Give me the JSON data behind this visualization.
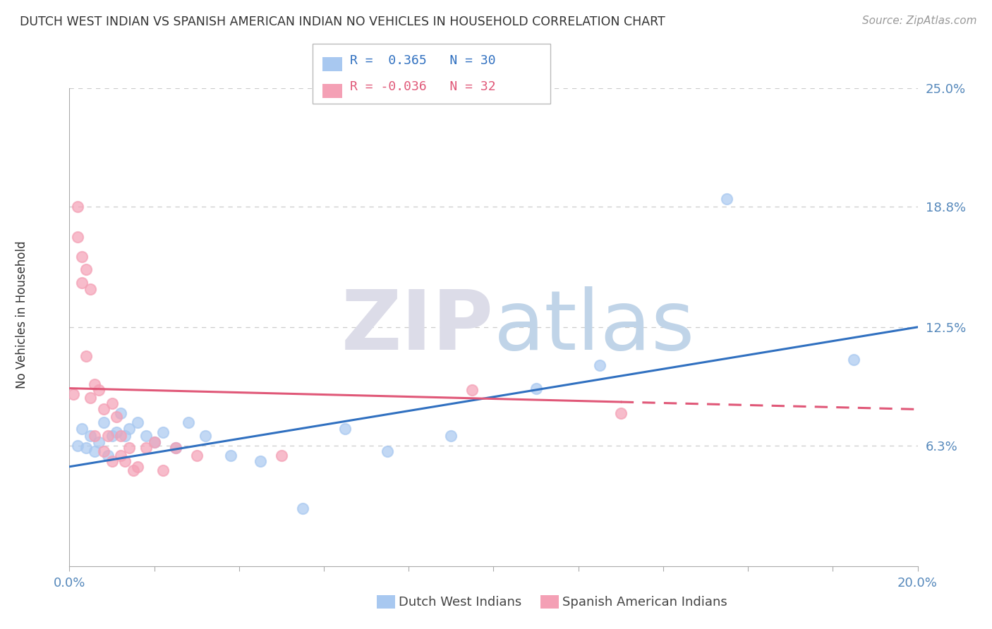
{
  "title": "DUTCH WEST INDIAN VS SPANISH AMERICAN INDIAN NO VEHICLES IN HOUSEHOLD CORRELATION CHART",
  "source": "Source: ZipAtlas.com",
  "ylabel": "No Vehicles in Household",
  "x_min": 0.0,
  "x_max": 0.2,
  "y_min": 0.0,
  "y_max": 0.25,
  "x_ticks": [
    0.0,
    0.02,
    0.04,
    0.06,
    0.08,
    0.1,
    0.12,
    0.14,
    0.16,
    0.18,
    0.2
  ],
  "y_ticks": [
    0.063,
    0.125,
    0.188,
    0.25
  ],
  "y_tick_labels": [
    "6.3%",
    "12.5%",
    "18.8%",
    "25.0%"
  ],
  "r_blue": 0.365,
  "n_blue": 30,
  "r_pink": -0.036,
  "n_pink": 32,
  "blue_color": "#A8C8F0",
  "pink_color": "#F4A0B5",
  "blue_line_color": "#3070C0",
  "pink_line_color": "#E05878",
  "grid_color": "#CCCCCC",
  "legend_label_blue": "Dutch West Indians",
  "legend_label_pink": "Spanish American Indians",
  "blue_dots_x": [
    0.002,
    0.003,
    0.004,
    0.005,
    0.006,
    0.007,
    0.008,
    0.009,
    0.01,
    0.011,
    0.012,
    0.013,
    0.014,
    0.016,
    0.018,
    0.02,
    0.022,
    0.025,
    0.028,
    0.032,
    0.038,
    0.045,
    0.055,
    0.065,
    0.075,
    0.09,
    0.11,
    0.125,
    0.155,
    0.185
  ],
  "blue_dots_y": [
    0.063,
    0.072,
    0.062,
    0.068,
    0.06,
    0.065,
    0.075,
    0.058,
    0.068,
    0.07,
    0.08,
    0.068,
    0.072,
    0.075,
    0.068,
    0.065,
    0.07,
    0.062,
    0.075,
    0.068,
    0.058,
    0.055,
    0.03,
    0.072,
    0.06,
    0.068,
    0.093,
    0.105,
    0.192,
    0.108
  ],
  "pink_dots_x": [
    0.001,
    0.002,
    0.002,
    0.003,
    0.003,
    0.004,
    0.004,
    0.005,
    0.005,
    0.006,
    0.006,
    0.007,
    0.008,
    0.008,
    0.009,
    0.01,
    0.01,
    0.011,
    0.012,
    0.012,
    0.013,
    0.014,
    0.015,
    0.016,
    0.018,
    0.02,
    0.022,
    0.025,
    0.03,
    0.05,
    0.095,
    0.13
  ],
  "pink_dots_y": [
    0.09,
    0.188,
    0.172,
    0.162,
    0.148,
    0.155,
    0.11,
    0.145,
    0.088,
    0.095,
    0.068,
    0.092,
    0.082,
    0.06,
    0.068,
    0.085,
    0.055,
    0.078,
    0.068,
    0.058,
    0.055,
    0.062,
    0.05,
    0.052,
    0.062,
    0.065,
    0.05,
    0.062,
    0.058,
    0.058,
    0.092,
    0.08
  ],
  "blue_line_y0": 0.052,
  "blue_line_y1": 0.125,
  "pink_line_y0": 0.093,
  "pink_line_y1": 0.082
}
